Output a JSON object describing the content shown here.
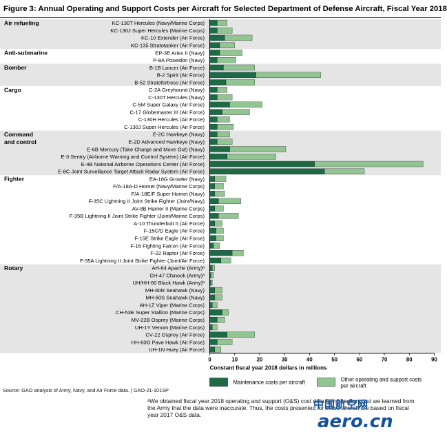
{
  "title": "Figure 3: Annual Operating and Support Costs per Aircraft for Selected Department of Defense Aircraft, Fiscal Year 2018",
  "source": "Source: GAO analysis of Army, Navy, and Air Force data.  |  GAO-21-101SP",
  "footnote": "ᵃWe obtained fiscal year 2018 operating and support (O&S) cost data from the Army but we learned from the Army that the data were inaccurate. Thus, the costs presented for these aircraft are based on fiscal year 2017 O&S data.",
  "watermark": {
    "cn": "中国航空网",
    "en": "aero.cn"
  },
  "colors": {
    "maintenance": "#1d6a47",
    "other": "#93c593",
    "shade": "#e5e5e5",
    "axis": "#000000"
  },
  "chart_data": {
    "type": "bar",
    "stacked": true,
    "orientation": "horizontal",
    "xlabel": "Constant fiscal year 2018 dollars in millions",
    "xlim": [
      0,
      90
    ],
    "xticks": [
      0,
      10,
      20,
      30,
      40,
      50,
      60,
      70,
      80,
      90
    ],
    "legend": [
      {
        "key": "maintenance",
        "label": "Maintenance costs per aircraft"
      },
      {
        "key": "other",
        "label": "Other operating and support costs per aircraft"
      }
    ],
    "groups": [
      {
        "name": "Air refueling",
        "items": [
          {
            "label": "KC-130T Hercules (Navy/Marine Corps)",
            "maintenance": 3,
            "other": 4
          },
          {
            "label": "KC-130J Super Hercules (Marine Corps)",
            "maintenance": 3,
            "other": 6
          },
          {
            "label": "KC-10 Extender (Air Force)",
            "maintenance": 6,
            "other": 11
          },
          {
            "label": "KC-135 Stratotanker (Air Force)",
            "maintenance": 4,
            "other": 6
          }
        ]
      },
      {
        "name": "Anti-submarine",
        "items": [
          {
            "label": "EP-3E Aries II (Navy)",
            "maintenance": 4,
            "other": 9
          },
          {
            "label": "P-8A Poseidon (Navy)",
            "maintenance": 3,
            "other": 7.5
          }
        ]
      },
      {
        "name": "Bomber",
        "items": [
          {
            "label": "B-1B Lancer (Air Force)",
            "maintenance": 5.5,
            "other": 12.5
          },
          {
            "label": "B-2 Spirit (Air Force)",
            "maintenance": 18.5,
            "other": 26
          },
          {
            "label": "B-52 Stratofortress (Air Force)",
            "maintenance": 6.5,
            "other": 11.5
          }
        ]
      },
      {
        "name": "Cargo",
        "items": [
          {
            "label": "C-2A Greyhound (Navy)",
            "maintenance": 3,
            "other": 4
          },
          {
            "label": "C-130T Hercules (Navy)",
            "maintenance": 3,
            "other": 6
          },
          {
            "label": "C-5M Super Galaxy (Air Force)",
            "maintenance": 8,
            "other": 13
          },
          {
            "label": "C-17 Globemaster III (Air Force)",
            "maintenance": 5,
            "other": 11
          },
          {
            "label": "C-130H Hercules (Air Force)",
            "maintenance": 3,
            "other": 5
          },
          {
            "label": "C-130J Super Hercules (Air Force)",
            "maintenance": 3,
            "other": 6.5
          }
        ]
      },
      {
        "name": "Command and control",
        "items": [
          {
            "label": "E-2C Hawkeye (Navy)",
            "maintenance": 3,
            "other": 5
          },
          {
            "label": "E-2D Advanced Hawkeye (Navy)",
            "maintenance": 3,
            "other": 6
          },
          {
            "label": "E-6B Mercury (Take Charge and Move Out) (Navy)",
            "maintenance": 8,
            "other": 22.5
          },
          {
            "label": "E-3 Sentry (Airborne Warning and Control System) (Air Force)",
            "maintenance": 7,
            "other": 19.5
          },
          {
            "label": "E-4B National Airborne Operations Center (Air Force)",
            "maintenance": 42,
            "other": 43.5
          },
          {
            "label": "E-8C Joint Surveillance Target Attack Radar System (Air Force)",
            "maintenance": 46,
            "other": 16
          }
        ]
      },
      {
        "name": "Fighter",
        "items": [
          {
            "label": "EA-18G Growler (Navy)",
            "maintenance": 2,
            "other": 4.5
          },
          {
            "label": "F/A-18A-D Hornet (Navy/Marine Corps)",
            "maintenance": 2,
            "other": 3.5
          },
          {
            "label": "F/A-18E/F Super Hornet (Navy)",
            "maintenance": 2,
            "other": 4
          },
          {
            "label": "F-35C Lightning II Joint Strike Fighter (Joint/Navy)",
            "maintenance": 3.5,
            "other": 9
          },
          {
            "label": "AV-8B Harrier II (Marine Corps)",
            "maintenance": 2,
            "other": 3.5
          },
          {
            "label": "F-35B Lightning II Joint Strike Fighter (Joint/Marine Corps)",
            "maintenance": 3.5,
            "other": 8
          },
          {
            "label": "A-10 Thunderbolt II (Air Force)",
            "maintenance": 2,
            "other": 3
          },
          {
            "label": "F-15C/D Eagle (Air Force)",
            "maintenance": 2.5,
            "other": 3
          },
          {
            "label": "F-15E Strike Eagle (Air Force)",
            "maintenance": 2.5,
            "other": 3
          },
          {
            "label": "F-16 Fighting Falcon (Air Force)",
            "maintenance": 1.5,
            "other": 2.5
          },
          {
            "label": "F-22 Raptor (Air Force)",
            "maintenance": 9,
            "other": 4.5
          },
          {
            "label": "F-35A Lightning II Joint Strike Fighter (Joint/Air Force)",
            "maintenance": 4.5,
            "other": 4
          }
        ]
      },
      {
        "name": "Rotary",
        "items": [
          {
            "label": "AH-64 Apache (Army)ᵃ",
            "maintenance": 1,
            "other": 1
          },
          {
            "label": "CH-47 Chinook (Army)ᵃ",
            "maintenance": 0.5,
            "other": 1
          },
          {
            "label": "UH/HH-60 Black Hawk (Army)ᵃ",
            "maintenance": 0.5,
            "other": 0.5
          },
          {
            "label": "MH-60R Seahawk (Navy)",
            "maintenance": 2,
            "other": 3
          },
          {
            "label": "MH-60S Seahawk (Navy)",
            "maintenance": 2,
            "other": 3
          },
          {
            "label": "AH-1Z Viper (Marine Corps)",
            "maintenance": 1,
            "other": 2
          },
          {
            "label": "CH-53E Super Stallion (Marine Corps)",
            "maintenance": 5,
            "other": 2.5
          },
          {
            "label": "MV-22B Osprey (Marine Corps)",
            "maintenance": 3,
            "other": 3
          },
          {
            "label": "UH-1Y Venom (Marine Corps)",
            "maintenance": 1,
            "other": 2
          },
          {
            "label": "CV-22 Osprey (Air Force)",
            "maintenance": 7,
            "other": 11
          },
          {
            "label": "HH-60G Pave Hawk (Air Force)",
            "maintenance": 3,
            "other": 6
          },
          {
            "label": "UH-1N Huey (Air Force)",
            "maintenance": 2,
            "other": 2.5
          }
        ]
      }
    ]
  }
}
